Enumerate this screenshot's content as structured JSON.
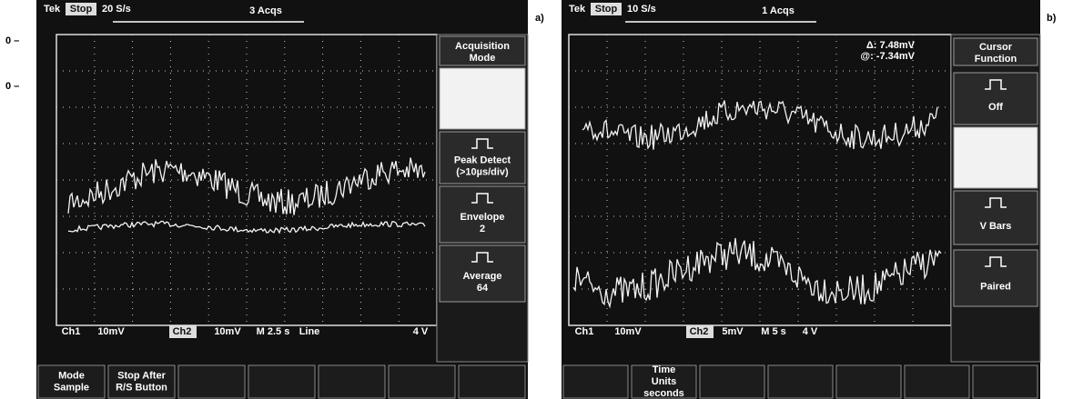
{
  "panels": [
    {
      "label": "a)",
      "header": {
        "brand": "Tek",
        "state": "Stop",
        "rate": "20 S/s",
        "acqs": "3 Acqs"
      },
      "left_markers": [
        "0 –",
        "0 –"
      ],
      "menu_title": [
        "Acquisition",
        "Mode"
      ],
      "menu_items": [
        [
          "Peak Detect",
          "(>10µs/div)"
        ],
        [
          "Envelope",
          "2"
        ],
        [
          "Average",
          "64"
        ]
      ],
      "status": [
        "Ch1",
        "10mV",
        "Ch2",
        "10mV",
        "M 2.5 s",
        "Line",
        "4 V"
      ],
      "buttons": [
        [
          "Mode",
          "Sample"
        ],
        [
          "Stop After",
          "R/S Button"
        ]
      ]
    },
    {
      "label": "b)",
      "header": {
        "brand": "Tek",
        "state": "Stop",
        "rate": "10 S/s",
        "acqs": "1 Acqs"
      },
      "cursor_readout": [
        "Δ: 7.48mV",
        "@: -7.34mV"
      ],
      "menu_title": [
        "Cursor",
        "Function"
      ],
      "menu_items": [
        [
          "Off"
        ],
        [
          "V Bars"
        ],
        [
          "Paired"
        ]
      ],
      "status": [
        "Ch1",
        "10mV",
        "Ch2",
        "5mV",
        "M 5 s",
        "4 V"
      ],
      "buttons": [
        [],
        [
          "Time",
          "Units",
          "seconds"
        ]
      ]
    }
  ]
}
